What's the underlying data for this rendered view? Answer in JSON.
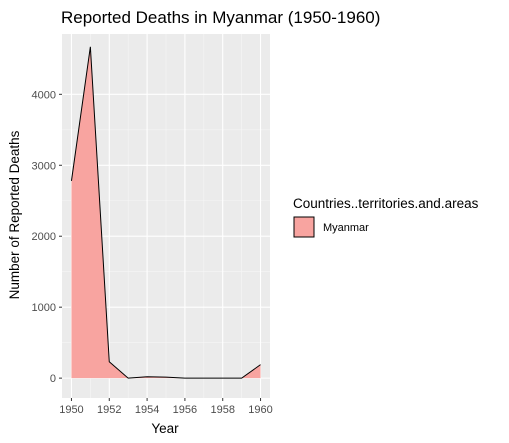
{
  "chart_data": {
    "type": "area",
    "title": "Reported Deaths in Myanmar (1950-1960)",
    "xlabel": "Year",
    "ylabel": "Number of Reported Deaths",
    "xlim": [
      1949.5,
      1960.5
    ],
    "ylim": [
      -280,
      4850
    ],
    "x_ticks": [
      1950,
      1952,
      1954,
      1956,
      1958,
      1960
    ],
    "y_ticks": [
      0,
      1000,
      2000,
      3000,
      4000
    ],
    "grid": true,
    "legend": {
      "title": "Countries..territories.and.areas",
      "position": "right"
    },
    "series": [
      {
        "name": "Myanmar",
        "color": "#f8a4a0",
        "outline": "#000000",
        "x": [
          1950,
          1951,
          1952,
          1953,
          1954,
          1955,
          1956,
          1957,
          1958,
          1959,
          1960
        ],
        "values": [
          2780,
          4670,
          230,
          0,
          20,
          15,
          0,
          0,
          0,
          0,
          190
        ]
      }
    ]
  }
}
